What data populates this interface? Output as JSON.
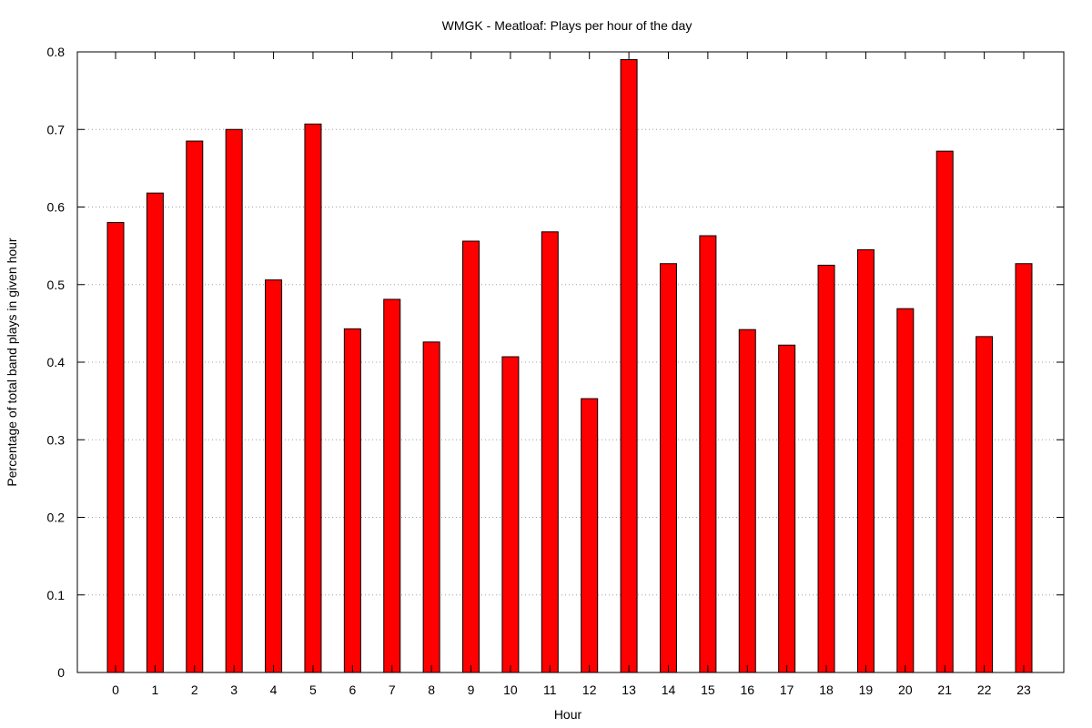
{
  "chart_data": {
    "type": "bar",
    "title": "WMGK - Meatloaf: Plays per hour of the day",
    "xlabel": "Hour",
    "ylabel": "Percentage of total band plays in given hour",
    "ylim": [
      0,
      0.8
    ],
    "yticks": [
      "0",
      "0.1",
      "0.2",
      "0.3",
      "0.4",
      "0.5",
      "0.6",
      "0.7",
      "0.8"
    ],
    "grid": "horizontal-dotted",
    "bar_color": "#ff0000",
    "categories": [
      "0",
      "1",
      "2",
      "3",
      "4",
      "5",
      "6",
      "7",
      "8",
      "9",
      "10",
      "11",
      "12",
      "13",
      "14",
      "15",
      "16",
      "17",
      "18",
      "19",
      "20",
      "21",
      "22",
      "23"
    ],
    "values": [
      0.58,
      0.618,
      0.685,
      0.7,
      0.506,
      0.707,
      0.443,
      0.481,
      0.426,
      0.556,
      0.407,
      0.568,
      0.353,
      0.79,
      0.527,
      0.563,
      0.442,
      0.422,
      0.525,
      0.545,
      0.469,
      0.672,
      0.433,
      0.527
    ]
  }
}
